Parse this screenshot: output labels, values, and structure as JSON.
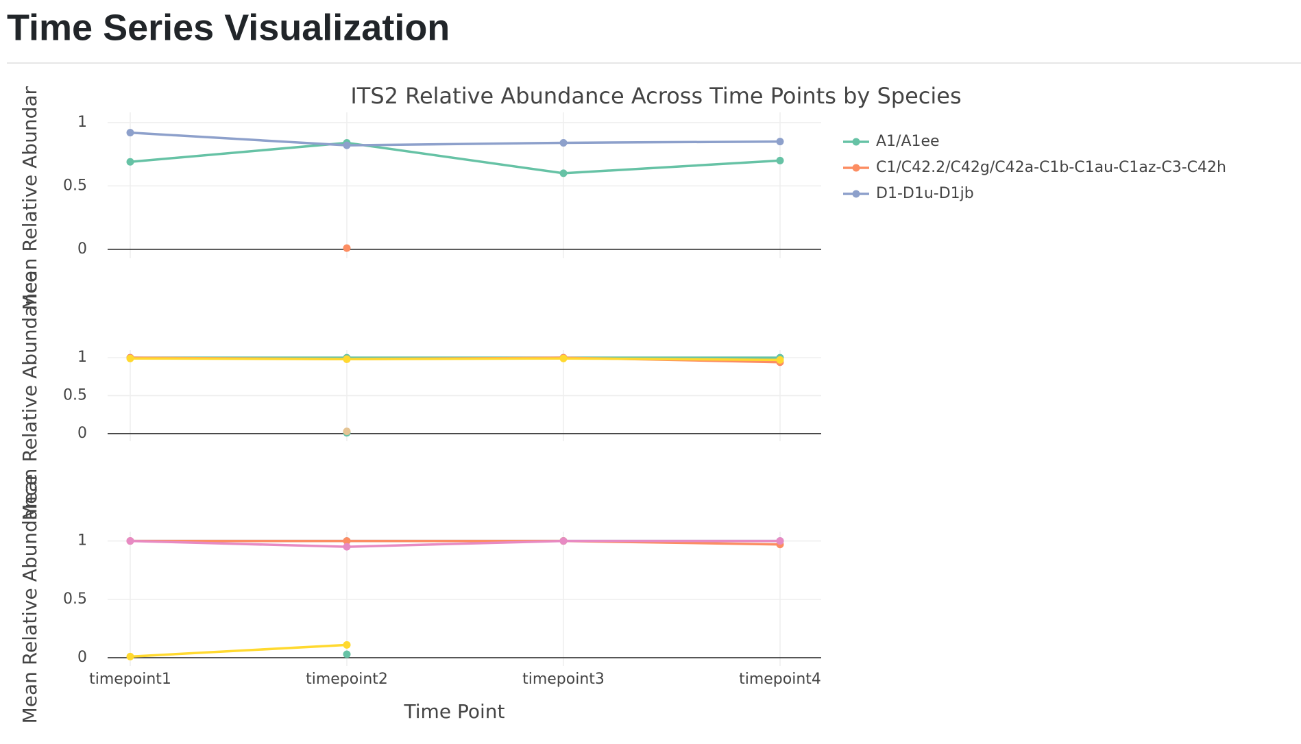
{
  "header": {
    "title": "Time Series Visualization"
  },
  "chart_data": [
    {
      "type": "line",
      "title": "ITS2 Relative Abundance Across Time Points by Species",
      "ylabel": "Mean Relative Abundance",
      "categories": [
        null,
        null,
        null,
        null
      ],
      "series": [
        {
          "name": "A1/A1ee",
          "color": "#66c2a5",
          "values": [
            0.69,
            0.84,
            0.6,
            0.7
          ]
        },
        {
          "name": "C1/C42.2/C42g/C42a-C1b-C1au-C1az-C3-C42h",
          "color": "#fc8d62",
          "values": [
            null,
            0.01,
            null,
            null
          ]
        },
        {
          "name": "D1-D1u-D1jb",
          "color": "#8da0cb",
          "values": [
            0.92,
            0.82,
            0.84,
            0.85
          ]
        }
      ],
      "ylim": [
        -0.07,
        1.08
      ],
      "yticks": [
        0,
        0.5,
        1
      ],
      "grid": true,
      "legend": "right"
    },
    {
      "type": "line",
      "ylabel": "Mean Relative Abundance",
      "categories": [
        null,
        null,
        null,
        null
      ],
      "series": [
        {
          "color": "#66c2a5",
          "values": [
            1,
            1,
            1,
            1
          ]
        },
        {
          "color": "#fc8d62",
          "values": [
            1,
            0.98,
            1,
            0.94
          ]
        },
        {
          "color": "#66c2a5",
          "values": [
            null,
            0.01,
            null,
            null
          ]
        },
        {
          "color": "#e5c494",
          "values": [
            null,
            0.03,
            null,
            null
          ]
        },
        {
          "color": "#ffd92f",
          "values": [
            0.99,
            0.98,
            0.99,
            0.97
          ]
        }
      ],
      "ylim": [
        -0.1,
        1.1
      ],
      "yticks": [
        0,
        0.5,
        1
      ],
      "grid": true
    },
    {
      "type": "line",
      "ylabel": "Mean Relative Abundance",
      "xlabel": "Time Point",
      "categories": [
        "timepoint1",
        "timepoint2",
        "timepoint3",
        "timepoint4"
      ],
      "series": [
        {
          "color": "#66c2a5",
          "values": [
            null,
            0.03,
            null,
            null
          ]
        },
        {
          "color": "#8da0cb",
          "values": [
            1,
            1,
            1,
            1
          ]
        },
        {
          "color": "#fc8d62",
          "values": [
            1,
            1,
            1,
            0.97
          ]
        },
        {
          "color": "#a6d854",
          "values": [
            null,
            null,
            1,
            null
          ]
        },
        {
          "color": "#e78ac3",
          "values": [
            1,
            0.95,
            1,
            1
          ]
        },
        {
          "color": "#ffd92f",
          "values": [
            0.01,
            0.11,
            null,
            null
          ]
        }
      ],
      "ylim": [
        -0.07,
        1.08
      ],
      "yticks": [
        0,
        0.5,
        1
      ],
      "grid": true
    }
  ]
}
